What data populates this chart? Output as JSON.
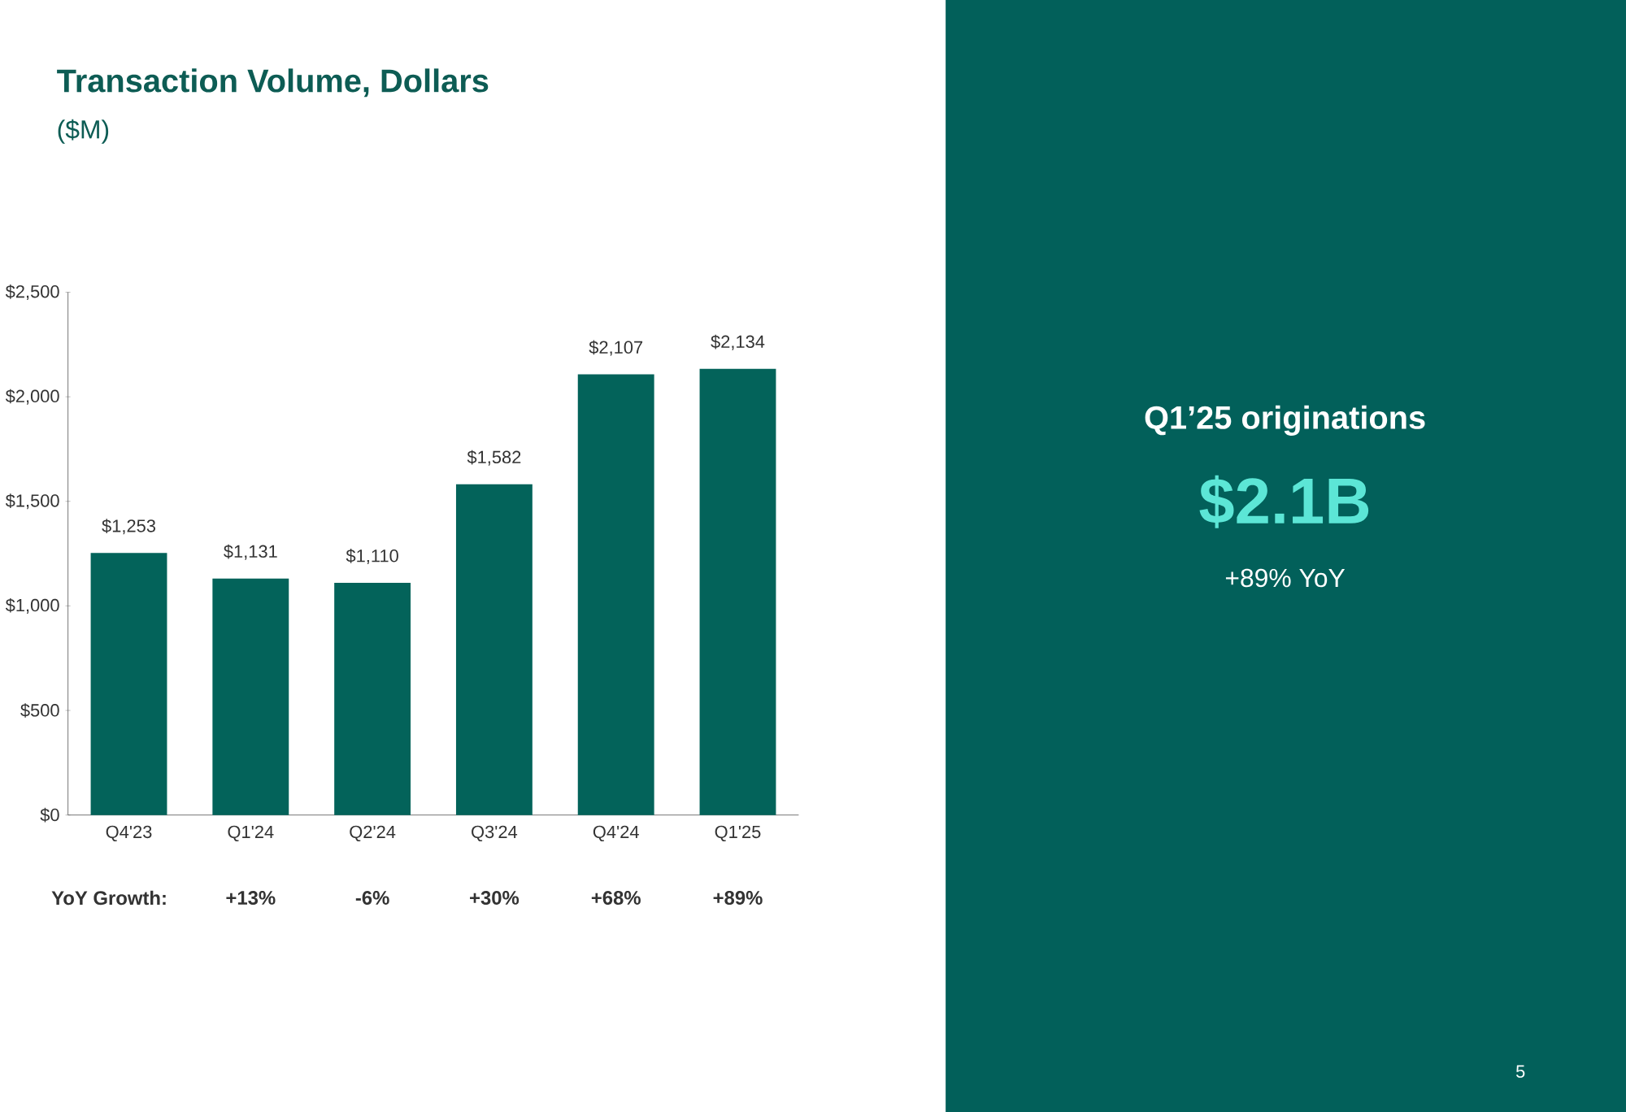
{
  "chart_data": [
    {
      "type": "bar",
      "title": "Transaction Volume, Dollars",
      "subtitle": "($M)",
      "categories": [
        "Q4'23",
        "Q1'24",
        "Q2'24",
        "Q3'24",
        "Q4'24",
        "Q1'25"
      ],
      "values": [
        1253,
        1131,
        1110,
        1582,
        2107,
        2134
      ],
      "value_labels": [
        "$1,253",
        "$1,131",
        "$1,110",
        "$1,582",
        "$2,107",
        "$2,134"
      ],
      "color": "#03635a",
      "ylim": [
        0,
        2500
      ],
      "yticks": [
        {
          "value": 0,
          "label": "$0"
        },
        {
          "value": 500,
          "label": "$500"
        },
        {
          "value": 1000,
          "label": "$1,000"
        },
        {
          "value": 1500,
          "label": "$1,500"
        },
        {
          "value": 2000,
          "label": "$2,000"
        },
        {
          "value": 2500,
          "label": "$2,500"
        }
      ],
      "annotations": [
        "YoY Growth:",
        "+13%",
        "-6%",
        "+30%",
        "+68%",
        "+89%"
      ]
    },
    {
      "type": "other",
      "title": "Q1’25 originations",
      "annotations": [
        "$2.1B",
        "+89% YoY",
        "5"
      ]
    }
  ]
}
